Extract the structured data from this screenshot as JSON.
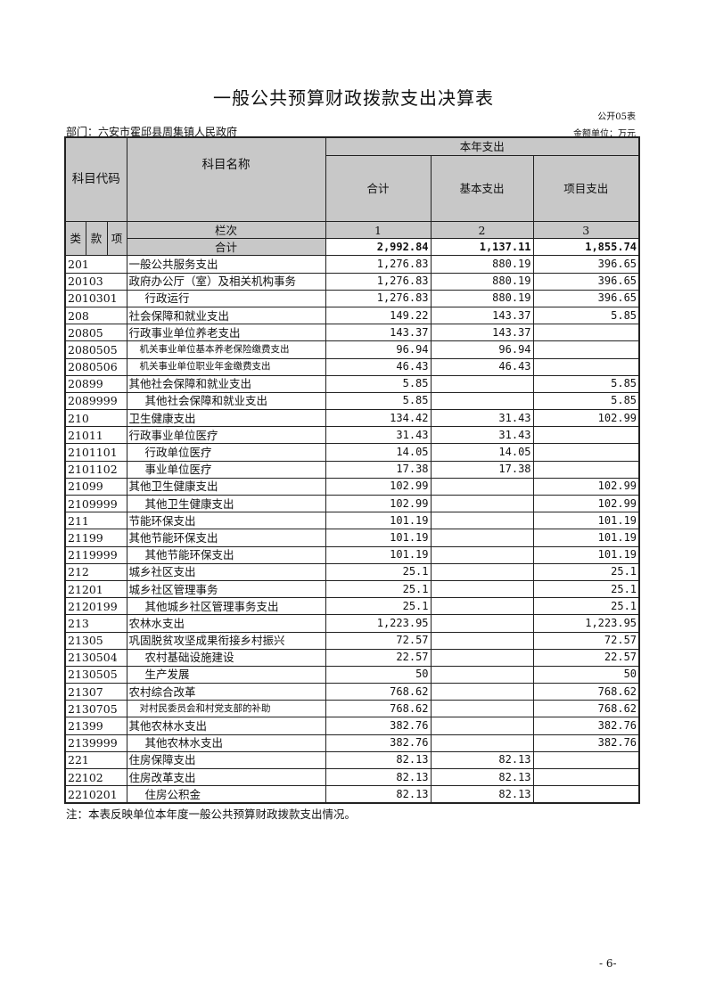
{
  "title": "一般公共预算财政拨款支出决算表",
  "form_no": "公开05表",
  "department": "部门：六安市霍邱县周集镇人民政府",
  "unit": "金额单位：万元",
  "header": {
    "code": "科目代码",
    "name": "科目名称",
    "this_year": "本年支出",
    "total": "合计",
    "basic": "基本支出",
    "project": "项目支出",
    "lei": "类",
    "kuan": "款",
    "xiang": "项",
    "column_order": "栏次",
    "col1": "1",
    "col2": "2",
    "col3": "3"
  },
  "total_row": {
    "label": "合计",
    "total": "2,992.84",
    "basic": "1,137.11",
    "project": "1,855.74"
  },
  "rows": [
    {
      "code": "201",
      "name": "一般公共服务支出",
      "total": "1,276.83",
      "basic": "880.19",
      "project": "396.65",
      "indent": 0
    },
    {
      "code": "20103",
      "name": "政府办公厅（室）及相关机构事务",
      "total": "1,276.83",
      "basic": "880.19",
      "project": "396.65",
      "indent": 0
    },
    {
      "code": "2010301",
      "name": "行政运行",
      "total": "1,276.83",
      "basic": "880.19",
      "project": "396.65",
      "indent": 1
    },
    {
      "code": "208",
      "name": "社会保障和就业支出",
      "total": "149.22",
      "basic": "143.37",
      "project": "5.85",
      "indent": 0
    },
    {
      "code": "20805",
      "name": "行政事业单位养老支出",
      "total": "143.37",
      "basic": "143.37",
      "project": "",
      "indent": 0
    },
    {
      "code": "2080505",
      "name": "机关事业单位基本养老保险缴费支出",
      "total": "96.94",
      "basic": "96.94",
      "project": "",
      "indent": 2
    },
    {
      "code": "2080506",
      "name": "机关事业单位职业年金缴费支出",
      "total": "46.43",
      "basic": "46.43",
      "project": "",
      "indent": 2
    },
    {
      "code": "20899",
      "name": "其他社会保障和就业支出",
      "total": "5.85",
      "basic": "",
      "project": "5.85",
      "indent": 0
    },
    {
      "code": "2089999",
      "name": "其他社会保障和就业支出",
      "total": "5.85",
      "basic": "",
      "project": "5.85",
      "indent": 1
    },
    {
      "code": "210",
      "name": "卫生健康支出",
      "total": "134.42",
      "basic": "31.43",
      "project": "102.99",
      "indent": 0
    },
    {
      "code": "21011",
      "name": "行政事业单位医疗",
      "total": "31.43",
      "basic": "31.43",
      "project": "",
      "indent": 0
    },
    {
      "code": "2101101",
      "name": "行政单位医疗",
      "total": "14.05",
      "basic": "14.05",
      "project": "",
      "indent": 1
    },
    {
      "code": "2101102",
      "name": "事业单位医疗",
      "total": "17.38",
      "basic": "17.38",
      "project": "",
      "indent": 1
    },
    {
      "code": "21099",
      "name": "其他卫生健康支出",
      "total": "102.99",
      "basic": "",
      "project": "102.99",
      "indent": 0
    },
    {
      "code": "2109999",
      "name": "其他卫生健康支出",
      "total": "102.99",
      "basic": "",
      "project": "102.99",
      "indent": 1
    },
    {
      "code": "211",
      "name": "节能环保支出",
      "total": "101.19",
      "basic": "",
      "project": "101.19",
      "indent": 0
    },
    {
      "code": "21199",
      "name": "其他节能环保支出",
      "total": "101.19",
      "basic": "",
      "project": "101.19",
      "indent": 0
    },
    {
      "code": "2119999",
      "name": "其他节能环保支出",
      "total": "101.19",
      "basic": "",
      "project": "101.19",
      "indent": 1
    },
    {
      "code": "212",
      "name": "城乡社区支出",
      "total": "25.1",
      "basic": "",
      "project": "25.1",
      "indent": 0
    },
    {
      "code": "21201",
      "name": "城乡社区管理事务",
      "total": "25.1",
      "basic": "",
      "project": "25.1",
      "indent": 0
    },
    {
      "code": "2120199",
      "name": "其他城乡社区管理事务支出",
      "total": "25.1",
      "basic": "",
      "project": "25.1",
      "indent": 1
    },
    {
      "code": "213",
      "name": "农林水支出",
      "total": "1,223.95",
      "basic": "",
      "project": "1,223.95",
      "indent": 0
    },
    {
      "code": "21305",
      "name": "巩固脱贫攻坚成果衔接乡村振兴",
      "total": "72.57",
      "basic": "",
      "project": "72.57",
      "indent": 0
    },
    {
      "code": "2130504",
      "name": "农村基础设施建设",
      "total": "22.57",
      "basic": "",
      "project": "22.57",
      "indent": 1
    },
    {
      "code": "2130505",
      "name": "生产发展",
      "total": "50",
      "basic": "",
      "project": "50",
      "indent": 1
    },
    {
      "code": "21307",
      "name": "农村综合改革",
      "total": "768.62",
      "basic": "",
      "project": "768.62",
      "indent": 0
    },
    {
      "code": "2130705",
      "name": "对村民委员会和村党支部的补助",
      "total": "768.62",
      "basic": "",
      "project": "768.62",
      "indent": 2
    },
    {
      "code": "21399",
      "name": "其他农林水支出",
      "total": "382.76",
      "basic": "",
      "project": "382.76",
      "indent": 0
    },
    {
      "code": "2139999",
      "name": "其他农林水支出",
      "total": "382.76",
      "basic": "",
      "project": "382.76",
      "indent": 1
    },
    {
      "code": "221",
      "name": "住房保障支出",
      "total": "82.13",
      "basic": "82.13",
      "project": "",
      "indent": 0
    },
    {
      "code": "22102",
      "name": "住房改革支出",
      "total": "82.13",
      "basic": "82.13",
      "project": "",
      "indent": 0
    },
    {
      "code": "2210201",
      "name": "住房公积金",
      "total": "82.13",
      "basic": "82.13",
      "project": "",
      "indent": 1
    }
  ],
  "note": "注：本表反映单位本年度一般公共预算财政拨款支出情况。",
  "page_number": "- 6-"
}
